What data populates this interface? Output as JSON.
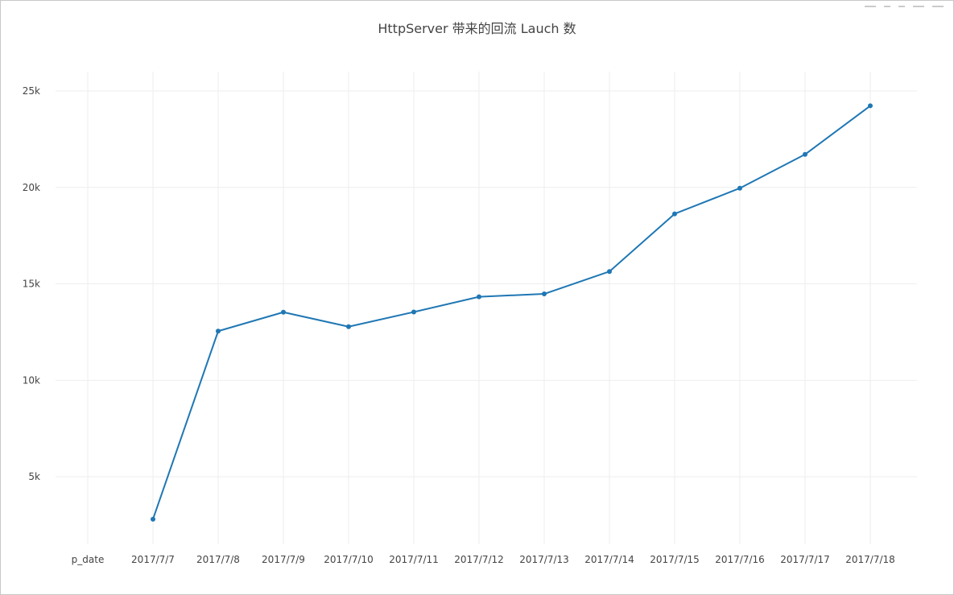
{
  "chart_data": {
    "type": "line",
    "title": "HttpServer 带来的回流 Lauch 数",
    "xlabel": "",
    "ylabel": "",
    "categories": [
      "p_date",
      "2017/7/7",
      "2017/7/8",
      "2017/7/9",
      "2017/7/10",
      "2017/7/11",
      "2017/7/12",
      "2017/7/13",
      "2017/7/14",
      "2017/7/15",
      "2017/7/16",
      "2017/7/17",
      "2017/7/18"
    ],
    "series": [
      {
        "values": [
          null,
          2800,
          12550,
          13530,
          12780,
          13540,
          14330,
          14480,
          15640,
          18630,
          19960,
          21710,
          24230
        ]
      }
    ],
    "ylim": [
      1500,
      26000
    ],
    "yticks": [
      5000,
      10000,
      15000,
      20000,
      25000
    ],
    "ytick_labels": [
      "5k",
      "10k",
      "15k",
      "20k",
      "25k"
    ],
    "grid": true,
    "legend": "none",
    "colors": {
      "line": "#1f77b4",
      "grid": "#eeeeee"
    }
  }
}
